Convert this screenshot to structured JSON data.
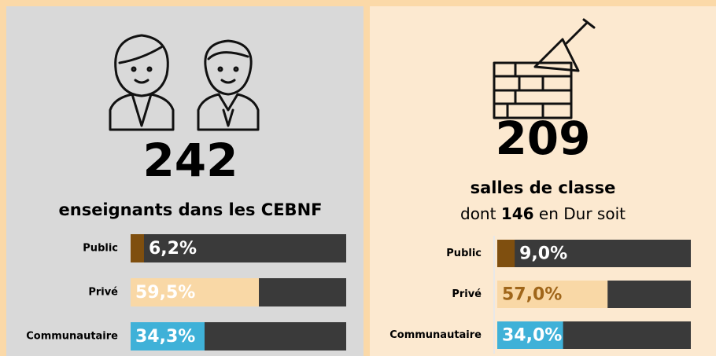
{
  "chart_data": [
    {
      "type": "hbar",
      "title": "242",
      "subtitle": "enseignants dans les CEBNF",
      "categories": [
        "Public",
        "Privé",
        "Communautaire"
      ],
      "values": [
        6.2,
        59.5,
        34.3
      ],
      "value_labels": [
        "6,2%",
        "59,5%",
        "34,3%"
      ],
      "colors": [
        "#7f4f0f",
        "#f9d8a6",
        "#3fb1d8"
      ],
      "xlim": [
        0,
        100
      ]
    },
    {
      "type": "hbar",
      "title": "209",
      "subtitle": "salles de classe",
      "note": [
        "dont",
        "146",
        "en Dur soit"
      ],
      "categories": [
        "Public",
        "Privé",
        "Communautaire"
      ],
      "values": [
        9.0,
        57.0,
        34.0
      ],
      "value_labels": [
        "9,0%",
        "57,0%",
        "34,0%"
      ],
      "colors": [
        "#7f4f0f",
        "#f9d8a6",
        "#3fb1d8"
      ],
      "xlim": [
        0,
        100
      ]
    }
  ]
}
